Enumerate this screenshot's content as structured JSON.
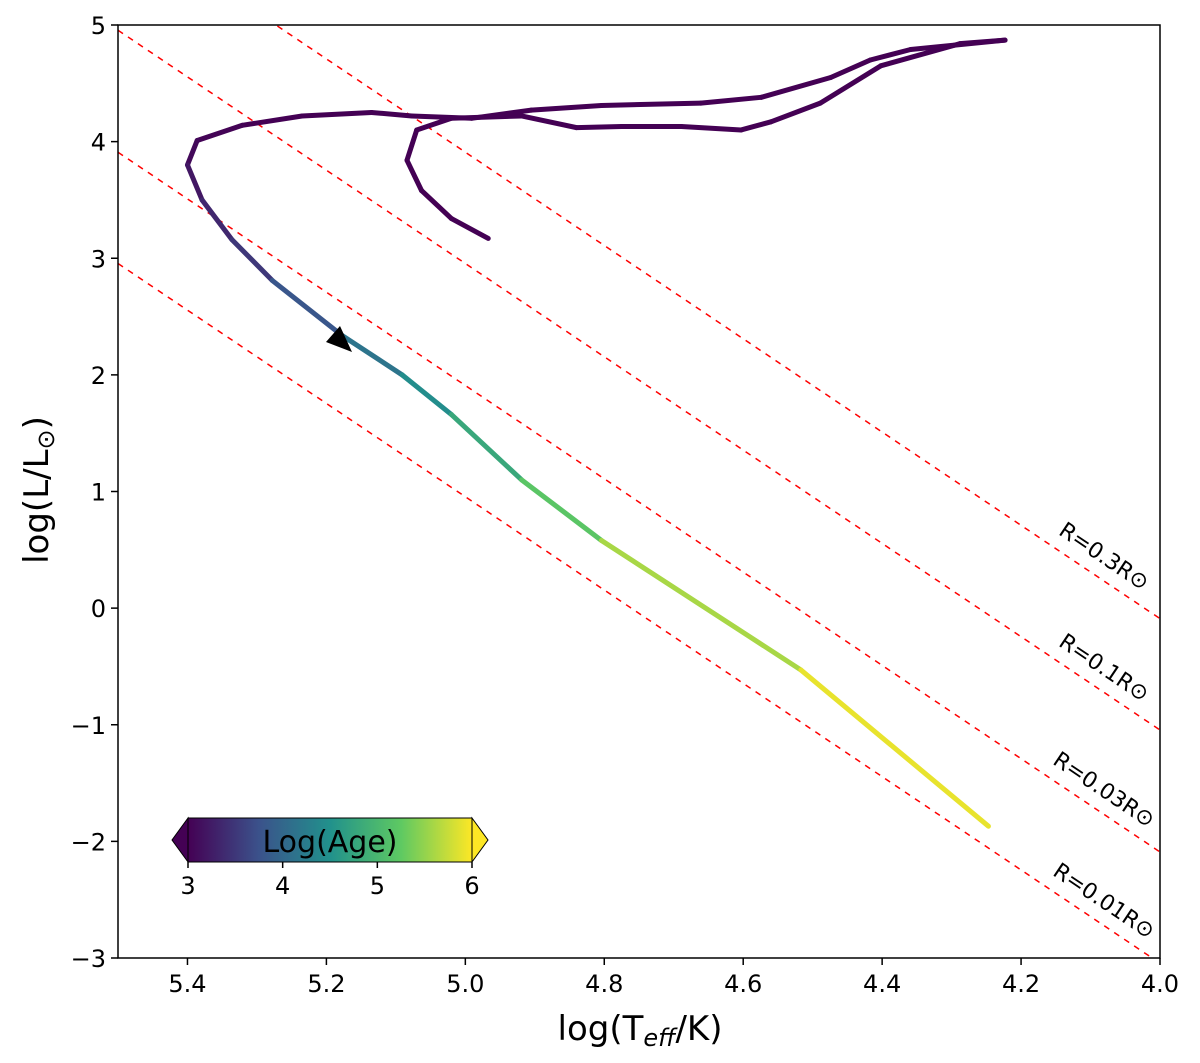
{
  "chart_data": {
    "type": "track",
    "xlabel": {
      "base": "log(T",
      "sub": "eff",
      "tail": "/K)"
    },
    "ylabel": {
      "base": "log(L/L",
      "sub": "⊙",
      "tail": ")"
    },
    "xlim": [
      5.5,
      4.0
    ],
    "ylim": [
      -3,
      5
    ],
    "xticks": [
      5.4,
      5.2,
      {
        "value": 5.0,
        "label": "5.0"
      },
      4.8,
      4.6,
      4.4,
      4.2,
      {
        "value": 4.0,
        "label": "4.0"
      }
    ],
    "yticks": [
      {
        "value": -3,
        "label": "−3"
      },
      {
        "value": -2,
        "label": "−2"
      },
      {
        "value": -1,
        "label": "−1"
      },
      0,
      1,
      2,
      3,
      4,
      5
    ],
    "track": {
      "x": [
        4.967,
        5.02,
        5.063,
        5.084,
        5.07,
        5.02,
        4.919,
        4.84,
        4.775,
        4.689,
        4.603,
        4.56,
        4.489,
        4.402,
        4.288,
        4.223,
        4.359,
        4.417,
        4.474,
        4.574,
        4.661,
        4.804,
        4.905,
        4.991,
        5.077,
        5.135,
        5.235,
        5.321,
        5.386,
        5.4,
        5.379,
        5.336,
        5.278,
        5.178,
        5.091,
        5.02,
        4.919,
        4.804,
        4.517,
        4.247
      ],
      "y": [
        3.17,
        3.34,
        3.58,
        3.84,
        4.1,
        4.2,
        4.22,
        4.12,
        4.13,
        4.13,
        4.1,
        4.17,
        4.33,
        4.65,
        4.84,
        4.87,
        4.79,
        4.7,
        4.55,
        4.38,
        4.33,
        4.31,
        4.27,
        4.2,
        4.22,
        4.25,
        4.22,
        4.14,
        4.01,
        3.8,
        3.5,
        3.16,
        2.81,
        2.34,
        2.0,
        1.66,
        1.1,
        0.58,
        -0.53,
        -1.87
      ],
      "age": [
        3.0,
        3.0,
        3.0,
        3.0,
        3.0,
        3.0,
        3.0,
        3.0,
        3.0,
        3.0,
        3.0,
        3.0,
        3.0,
        3.0,
        3.0,
        3.0,
        3.0,
        3.0,
        3.0,
        3.0,
        3.0,
        3.0,
        3.0,
        3.0,
        3.0,
        3.0,
        3.0,
        3.0,
        3.05,
        3.1,
        3.3,
        3.4,
        3.6,
        4.0,
        4.3,
        4.6,
        5.0,
        5.4,
        5.8,
        6.0
      ]
    },
    "radius_lines": [
      {
        "label": "R=0.3R⊙",
        "x": [
          5.5,
          4.0
        ],
        "y": [
          5.909,
          -0.09
        ],
        "color": "#ff0000"
      },
      {
        "label": "R=0.1R⊙",
        "x": [
          5.5,
          4.0
        ],
        "y": [
          4.955,
          -1.045
        ],
        "color": "#ff0000"
      },
      {
        "label": "R=0.03R⊙",
        "x": [
          5.5,
          4.0
        ],
        "y": [
          3.909,
          -2.091
        ],
        "color": "#ff0000"
      },
      {
        "label": "R=0.01R⊙",
        "x": [
          5.5,
          4.0
        ],
        "y": [
          2.955,
          -3.045
        ],
        "color": "#ff0000"
      }
    ],
    "colorbar": {
      "label": "Log(Age)",
      "clim": [
        3,
        6
      ],
      "ticks": [
        3,
        4,
        5,
        6
      ],
      "colormap": [
        "#440154",
        "#3b528b",
        "#21918c",
        "#5ec962",
        "#fde725"
      ]
    }
  }
}
